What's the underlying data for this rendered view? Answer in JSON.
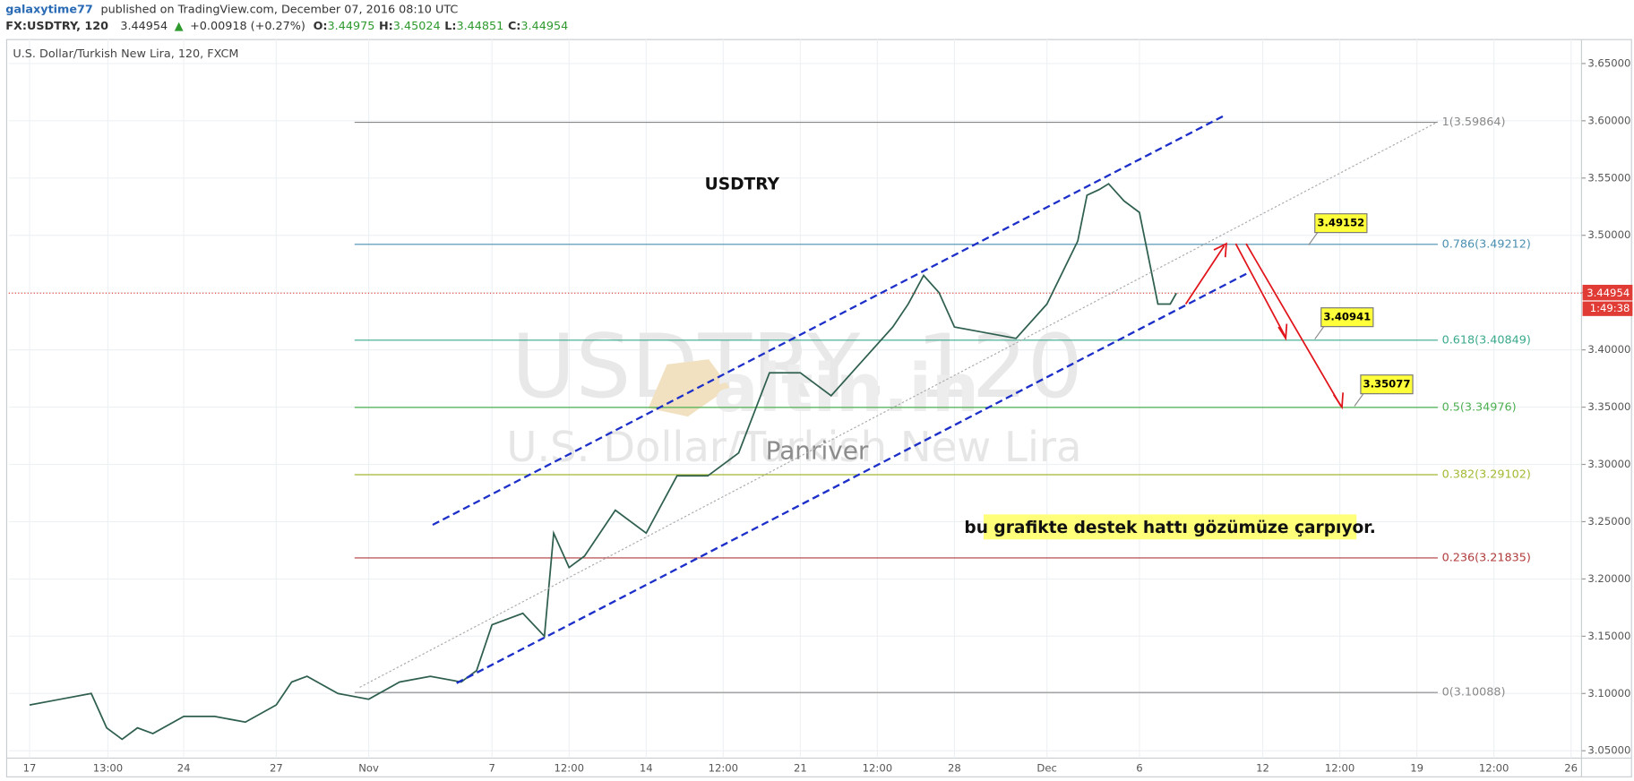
{
  "header": {
    "author": "galaxytime77",
    "published": "published on TradingView.com, December 07, 2016 08:10 UTC",
    "symbol": "FX:USDTRY, 120",
    "last": "3.44954",
    "arrow": "▲",
    "change": "+0.00918 (+0.27%)",
    "ohlc": [
      {
        "label": "O:",
        "value": "3.44975"
      },
      {
        "label": "H:",
        "value": "3.45024"
      },
      {
        "label": "L:",
        "value": "3.44851"
      },
      {
        "label": "C:",
        "value": "3.44954"
      }
    ]
  },
  "chart_data": {
    "type": "line",
    "title": "U.S. Dollar/Turkish New Lira, 120, FXCM",
    "x": [
      0,
      1,
      2,
      2.5,
      3,
      3.5,
      4,
      5,
      6,
      7,
      8,
      8.5,
      9,
      10,
      11,
      12,
      13,
      14,
      14.5,
      15,
      16,
      16.7,
      17,
      17.5,
      18,
      19,
      20,
      21,
      22,
      23,
      24,
      25,
      26,
      27,
      28,
      28.5,
      29,
      29.5,
      30,
      31,
      32,
      33,
      34,
      34.3,
      34.7,
      35,
      35.5,
      36,
      36.3,
      36.6,
      37,
      37.2
    ],
    "series": [
      {
        "color": "#2f5f4f",
        "values": [
          3.09,
          3.095,
          3.1,
          3.07,
          3.06,
          3.07,
          3.065,
          3.08,
          3.08,
          3.075,
          3.09,
          3.11,
          3.115,
          3.1,
          3.095,
          3.11,
          3.115,
          3.11,
          3.12,
          3.16,
          3.17,
          3.15,
          3.24,
          3.21,
          3.22,
          3.26,
          3.24,
          3.29,
          3.29,
          3.31,
          3.38,
          3.38,
          3.36,
          3.39,
          3.42,
          3.44,
          3.465,
          3.45,
          3.42,
          3.415,
          3.41,
          3.44,
          3.495,
          3.535,
          3.54,
          3.545,
          3.53,
          3.52,
          3.48,
          3.44,
          3.44,
          3.44954
        ]
      }
    ],
    "xlim": [
      -0.676,
      50.34
    ],
    "xticks": [
      {
        "value": 0,
        "label": "17"
      },
      {
        "value": 2.54,
        "label": "13:00"
      },
      {
        "value": 5,
        "label": "24"
      },
      {
        "value": 8,
        "label": "27"
      },
      {
        "value": 11,
        "label": "Nov"
      },
      {
        "value": 15,
        "label": "7"
      },
      {
        "value": 17.5,
        "label": "12:00"
      },
      {
        "value": 20,
        "label": "14"
      },
      {
        "value": 22.5,
        "label": "12:00"
      },
      {
        "value": 25,
        "label": "21"
      },
      {
        "value": 27.5,
        "label": "12:00"
      },
      {
        "value": 30,
        "label": "28"
      },
      {
        "value": 33,
        "label": "Dec"
      },
      {
        "value": 36,
        "label": "6"
      },
      {
        "value": 40,
        "label": "12"
      },
      {
        "value": 42.5,
        "label": "12:00"
      },
      {
        "value": 45,
        "label": "19"
      },
      {
        "value": 47.5,
        "label": "12:00"
      },
      {
        "value": 50,
        "label": "26"
      }
    ],
    "ylim": [
      3.0436,
      3.6709
    ],
    "yticks": [
      {
        "value": 3.05,
        "label": "3.05000"
      },
      {
        "value": 3.1,
        "label": "3.10000"
      },
      {
        "value": 3.15,
        "label": "3.15000"
      },
      {
        "value": 3.2,
        "label": "3.20000"
      },
      {
        "value": 3.25,
        "label": "3.25000"
      },
      {
        "value": 3.3,
        "label": "3.30000"
      },
      {
        "value": 3.35,
        "label": "3.35000"
      },
      {
        "value": 3.4,
        "label": "3.40000"
      },
      {
        "value": 3.45,
        "label": "3.45000"
      },
      {
        "value": 3.5,
        "label": "3.50000"
      },
      {
        "value": 3.55,
        "label": "3.55000"
      },
      {
        "value": 3.6,
        "label": "3.60000"
      },
      {
        "value": 3.65,
        "label": "3.65000"
      }
    ],
    "grid": true,
    "current_price": {
      "value": 3.44954,
      "label": "3.44954",
      "countdown": "1:49:38",
      "color": "#e03b35"
    },
    "fib_levels": [
      {
        "price": 3.59864,
        "label": "1(3.59864)",
        "color": "#888888"
      },
      {
        "price": 3.49212,
        "label": "0.786(3.49212)",
        "color": "#4a8fb0"
      },
      {
        "price": 3.40849,
        "label": "0.618(3.40849)",
        "color": "#3aaa8c"
      },
      {
        "price": 3.34976,
        "label": "0.5(3.34976)",
        "color": "#4caf50"
      },
      {
        "price": 3.29102,
        "label": "0.382(3.29102)",
        "color": "#a4b830"
      },
      {
        "price": 3.21835,
        "label": "0.236(3.21835)",
        "color": "#b03a3a"
      },
      {
        "price": 3.10088,
        "label": "0(3.10088)",
        "color": "#888888"
      }
    ],
    "price_callouts": [
      {
        "value": 3.49152,
        "label": "3.49152"
      },
      {
        "value": 3.40941,
        "label": "3.40941"
      },
      {
        "value": 3.35077,
        "label": "3.35077"
      }
    ],
    "annotations": {
      "symbol_note": "USDTRY",
      "comment": "bu grafikte destek hattı gözümüze çarpıyor.",
      "watermark_symbol": "USDTRY, 120",
      "watermark_name": "U.S. Dollar/Turkish New Lira",
      "brand": "altin.in",
      "author_mark": "Panriver"
    }
  }
}
